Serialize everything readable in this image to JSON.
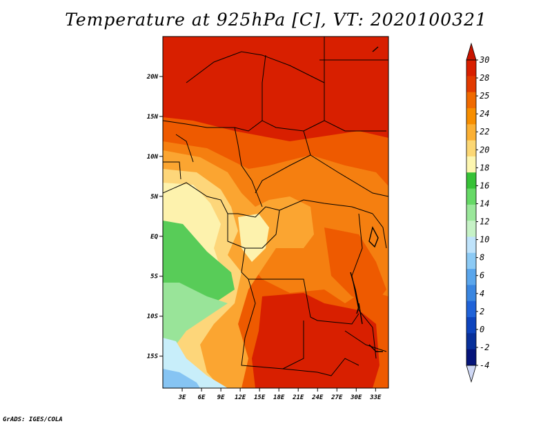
{
  "title": "Temperature at 925hPa [C], VT: 2020100321",
  "credit": "GrADS: IGES/COLA",
  "map": {
    "projection": "latlon",
    "lon_range": [
      0,
      35
    ],
    "lat_range": [
      -19,
      25
    ],
    "lon_ticks": [
      "3E",
      "6E",
      "9E",
      "12E",
      "15E",
      "18E",
      "21E",
      "24E",
      "27E",
      "30E",
      "33E"
    ],
    "lat_ticks": [
      "20N",
      "15N",
      "10N",
      "5N",
      "EQ",
      "5S",
      "10S",
      "15S"
    ]
  },
  "colorbar": {
    "orientation": "vertical",
    "placement": "right",
    "labels": [
      "30",
      "28",
      "25",
      "24",
      "22",
      "20",
      "18",
      "16",
      "14",
      "12",
      "10",
      "8",
      "6",
      "4",
      "2",
      "0",
      "-2",
      "-4"
    ],
    "colors": [
      "#d81f00",
      "#e23a00",
      "#f06a00",
      "#f78e00",
      "#fbb034",
      "#fcd774",
      "#fdf6b0",
      "#37c237",
      "#66d966",
      "#9ae79a",
      "#c6f2c6",
      "#bfe3fb",
      "#8ccaf5",
      "#5aa6ec",
      "#3a86e0",
      "#1f62d8",
      "#0d44bd",
      "#08309a",
      "#05147a"
    ],
    "top_arrow_color": "#c81400",
    "bottom_arrow_color": "#cfd8f5"
  },
  "palette": {
    "hot": "#d81f00",
    "warm": "#ee5a00",
    "orange": "#f57f10",
    "amber": "#fba531",
    "light": "#fdd67a",
    "pale": "#fdf2ad",
    "green": "#58cc58",
    "lightgreen": "#99e499",
    "paleblue": "#c8eefa",
    "blue": "#86c4f3"
  }
}
